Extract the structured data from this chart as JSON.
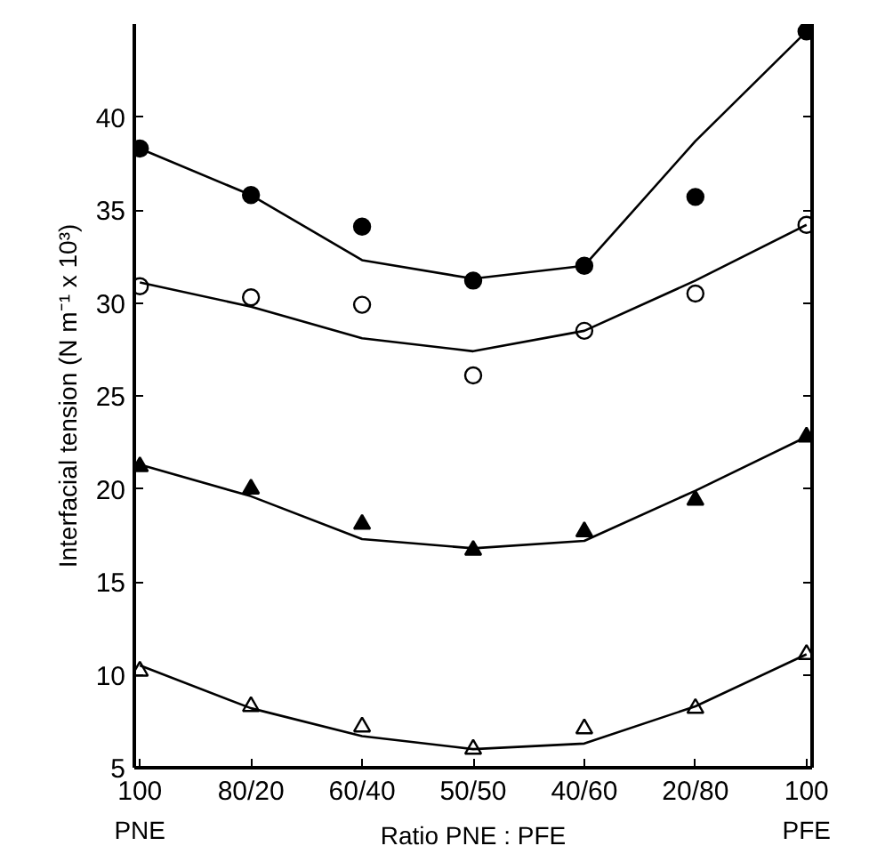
{
  "chart_data": {
    "type": "scatter",
    "xlabel": "Ratio PNE : PFE",
    "ylabel": "Interfacial tension (N m⁻¹ x 10³)",
    "categories": [
      "100",
      "80/20",
      "60/40",
      "50/50",
      "40/60",
      "20/80",
      "100"
    ],
    "ylim": [
      5,
      45
    ],
    "yticks": [
      5,
      10,
      15,
      20,
      25,
      30,
      35,
      40
    ],
    "series": [
      {
        "marker": "circle",
        "color": "#000000",
        "values": [
          38.3,
          35.8,
          34.1,
          31.2,
          32.0,
          35.7,
          44.6
        ]
      },
      {
        "marker": "circle",
        "color": "#000000",
        "values": [
          30.9,
          30.3,
          29.9,
          26.1,
          28.5,
          30.5,
          34.2
        ]
      },
      {
        "marker": "triangle",
        "color": "#000000",
        "values": [
          21.2,
          20.0,
          18.1,
          16.7,
          17.7,
          19.4,
          22.8
        ]
      },
      {
        "marker": "triangle",
        "color": "#000000",
        "values": [
          10.2,
          8.3,
          7.2,
          6.0,
          7.1,
          8.2,
          11.1
        ]
      },
      {
        "type": "line",
        "color": "#000000",
        "values": [
          38.3,
          35.8,
          32.3,
          31.3,
          32.0,
          38.7,
          44.6
        ]
      },
      {
        "type": "line",
        "color": "#000000",
        "values": [
          31.1,
          29.8,
          28.1,
          27.4,
          28.5,
          31.2,
          34.2
        ]
      },
      {
        "type": "line",
        "color": "#000000",
        "values": [
          21.3,
          19.6,
          17.3,
          16.8,
          17.2,
          19.9,
          22.8
        ]
      },
      {
        "type": "line",
        "color": "#000000",
        "values": [
          10.5,
          8.2,
          6.7,
          6.0,
          6.3,
          8.3,
          11.1
        ]
      }
    ],
    "annotations": [
      "PNE",
      "PFE"
    ]
  }
}
